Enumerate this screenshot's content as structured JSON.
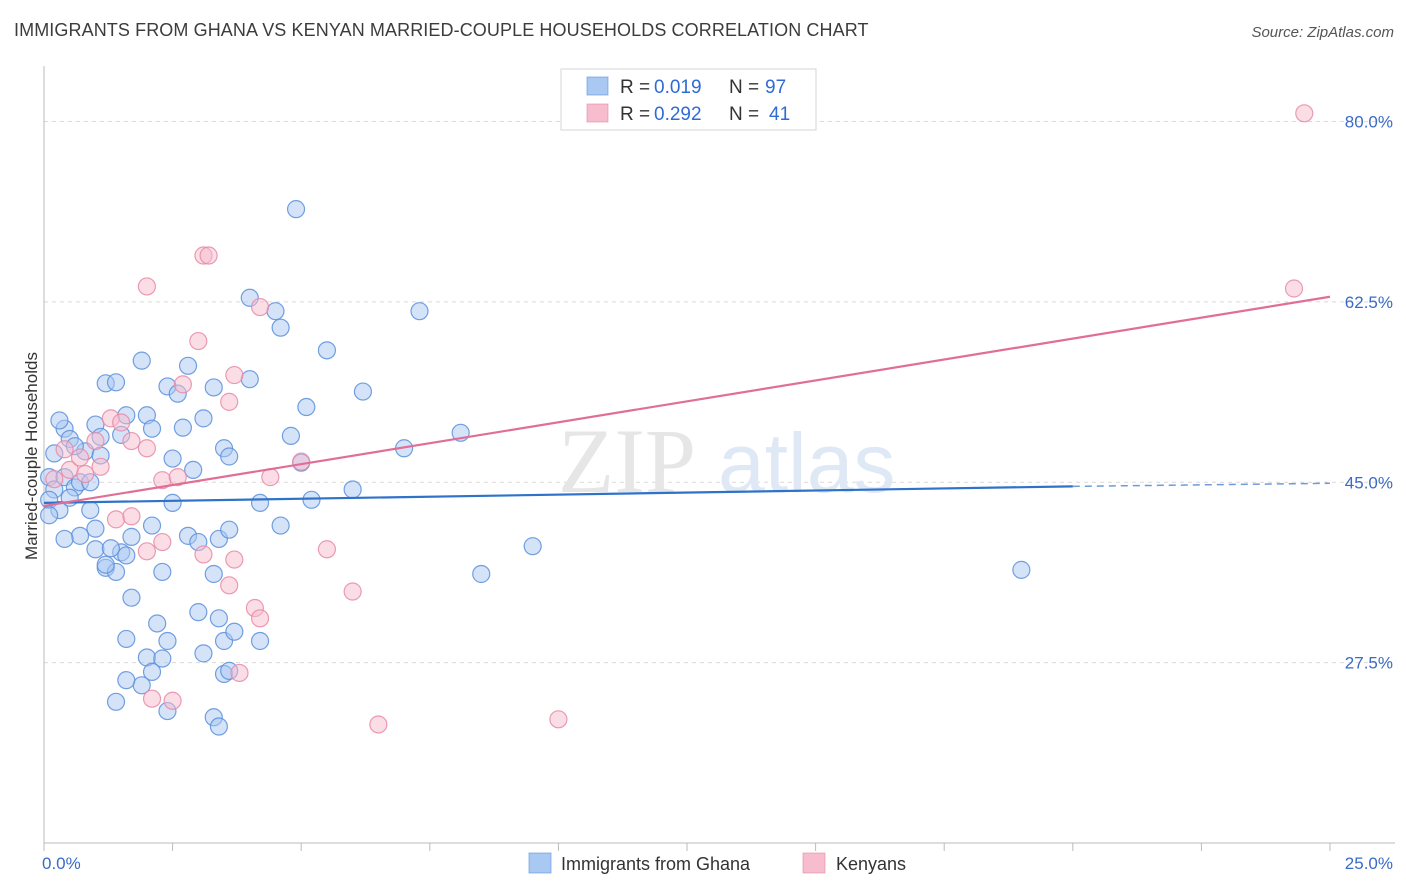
{
  "title": "IMMIGRANTS FROM GHANA VS KENYAN MARRIED-COUPLE HOUSEHOLDS CORRELATION CHART",
  "source": "Source: ZipAtlas.com",
  "watermark": {
    "zip": "ZIP",
    "atlas": "atlas"
  },
  "colors": {
    "blue_fill": "#a9c8f2",
    "blue_stroke": "#5a8fdc",
    "blue_line": "#2f72c9",
    "pink_fill": "#f7bccd",
    "pink_stroke": "#e889a7",
    "pink_line": "#e06e97",
    "grid": "#d9d9d9",
    "axis_label": "#3a6bc6"
  },
  "legend": {
    "rows": [
      {
        "r_label": "R =",
        "r_value": "0.019",
        "n_label": "N =",
        "n_value": "97"
      },
      {
        "r_label": "R =",
        "r_value": "0.292",
        "n_label": "N =",
        "n_value": "41"
      }
    ]
  },
  "bottom_legend": [
    "Immigrants from Ghana",
    "Kenyans"
  ],
  "chart_data": {
    "type": "scatter",
    "title": "IMMIGRANTS FROM GHANA VS KENYAN MARRIED-COUPLE HOUSEHOLDS CORRELATION CHART",
    "xlabel": "",
    "ylabel": "Married-couple Households",
    "xlim": [
      0,
      25
    ],
    "ylim": [
      10,
      85
    ],
    "x_tick_labels": [
      "0.0%",
      "25.0%"
    ],
    "y_ticks": [
      27.5,
      45.0,
      62.5,
      80.0
    ],
    "y_tick_labels": [
      "27.5%",
      "45.0%",
      "62.5%",
      "80.0%"
    ],
    "series": [
      {
        "name": "Immigrants from Ghana",
        "r": 0.019,
        "n": 97,
        "trend": {
          "x0": 0,
          "y0": 43.0,
          "x1": 20,
          "y1": 44.6,
          "dash_x1": 25,
          "dash_y1": 44.9
        },
        "points": [
          [
            0.1,
            45.5
          ],
          [
            0.2,
            44.3
          ],
          [
            0.1,
            43.3
          ],
          [
            0.3,
            42.3
          ],
          [
            0.1,
            41.8
          ],
          [
            0.2,
            47.8
          ],
          [
            0.4,
            50.2
          ],
          [
            0.5,
            49.2
          ],
          [
            0.4,
            45.5
          ],
          [
            0.6,
            44.5
          ],
          [
            0.7,
            45.0
          ],
          [
            0.5,
            43.5
          ],
          [
            0.8,
            48.0
          ],
          [
            0.9,
            45.0
          ],
          [
            1.0,
            50.6
          ],
          [
            1.1,
            47.6
          ],
          [
            0.9,
            42.3
          ],
          [
            1.0,
            40.5
          ],
          [
            0.7,
            39.8
          ],
          [
            0.4,
            39.5
          ],
          [
            1.2,
            54.6
          ],
          [
            1.1,
            49.4
          ],
          [
            1.4,
            54.7
          ],
          [
            1.5,
            49.6
          ],
          [
            1.6,
            51.5
          ],
          [
            1.9,
            56.8
          ],
          [
            2.0,
            51.5
          ],
          [
            2.1,
            50.2
          ],
          [
            2.4,
            54.3
          ],
          [
            2.6,
            53.6
          ],
          [
            2.7,
            50.3
          ],
          [
            2.8,
            56.3
          ],
          [
            2.5,
            47.3
          ],
          [
            2.5,
            43.0
          ],
          [
            2.9,
            46.2
          ],
          [
            3.1,
            51.2
          ],
          [
            3.3,
            54.2
          ],
          [
            3.5,
            48.3
          ],
          [
            3.6,
            47.5
          ],
          [
            4.0,
            62.9
          ],
          [
            4.0,
            55.0
          ],
          [
            4.2,
            43.0
          ],
          [
            4.5,
            61.6
          ],
          [
            4.6,
            60.0
          ],
          [
            4.8,
            49.5
          ],
          [
            5.0,
            46.9
          ],
          [
            5.2,
            43.3
          ],
          [
            5.1,
            52.3
          ],
          [
            5.5,
            57.8
          ],
          [
            4.9,
            71.5
          ],
          [
            6.0,
            44.3
          ],
          [
            6.2,
            53.8
          ],
          [
            7.3,
            61.6
          ],
          [
            7.0,
            48.3
          ],
          [
            8.1,
            49.8
          ],
          [
            1.0,
            38.5
          ],
          [
            1.2,
            36.7
          ],
          [
            1.4,
            36.3
          ],
          [
            1.5,
            38.2
          ],
          [
            1.3,
            38.6
          ],
          [
            1.6,
            37.9
          ],
          [
            1.7,
            39.7
          ],
          [
            1.2,
            37.0
          ],
          [
            2.3,
            36.3
          ],
          [
            2.8,
            39.8
          ],
          [
            3.0,
            39.2
          ],
          [
            3.4,
            39.5
          ],
          [
            3.3,
            36.1
          ],
          [
            2.1,
            40.8
          ],
          [
            1.7,
            33.8
          ],
          [
            2.2,
            31.3
          ],
          [
            1.6,
            29.8
          ],
          [
            2.0,
            28.0
          ],
          [
            2.3,
            27.9
          ],
          [
            2.1,
            26.6
          ],
          [
            1.9,
            25.3
          ],
          [
            2.4,
            29.6
          ],
          [
            3.0,
            32.4
          ],
          [
            3.5,
            29.6
          ],
          [
            3.4,
            31.8
          ],
          [
            3.7,
            30.5
          ],
          [
            4.2,
            29.6
          ],
          [
            3.5,
            26.4
          ],
          [
            3.6,
            26.7
          ],
          [
            3.1,
            28.4
          ],
          [
            1.4,
            23.7
          ],
          [
            1.6,
            25.8
          ],
          [
            3.3,
            22.2
          ],
          [
            3.4,
            21.3
          ],
          [
            2.4,
            22.8
          ],
          [
            9.5,
            38.8
          ],
          [
            8.5,
            36.1
          ],
          [
            3.6,
            40.4
          ],
          [
            4.6,
            40.8
          ],
          [
            19.0,
            36.5
          ],
          [
            0.3,
            51.0
          ],
          [
            0.6,
            48.5
          ]
        ]
      },
      {
        "name": "Kenyans",
        "r": 0.292,
        "n": 41,
        "trend": {
          "x0": 0,
          "y0": 42.7,
          "x1": 25,
          "y1": 63.0
        },
        "points": [
          [
            0.2,
            45.3
          ],
          [
            0.4,
            48.2
          ],
          [
            0.5,
            46.2
          ],
          [
            0.7,
            47.4
          ],
          [
            0.8,
            45.8
          ],
          [
            1.0,
            49.0
          ],
          [
            1.1,
            46.5
          ],
          [
            1.3,
            51.2
          ],
          [
            1.5,
            50.8
          ],
          [
            1.7,
            49.0
          ],
          [
            2.0,
            48.3
          ],
          [
            2.3,
            45.2
          ],
          [
            2.6,
            45.5
          ],
          [
            2.7,
            54.5
          ],
          [
            3.0,
            58.7
          ],
          [
            3.1,
            67.0
          ],
          [
            3.2,
            67.0
          ],
          [
            3.6,
            52.8
          ],
          [
            3.7,
            55.4
          ],
          [
            4.2,
            62.0
          ],
          [
            4.4,
            45.5
          ],
          [
            2.0,
            64.0
          ],
          [
            5.0,
            47.0
          ],
          [
            1.4,
            41.4
          ],
          [
            1.7,
            41.7
          ],
          [
            2.0,
            38.3
          ],
          [
            2.3,
            39.2
          ],
          [
            3.1,
            38.0
          ],
          [
            3.7,
            37.5
          ],
          [
            3.6,
            35.0
          ],
          [
            4.1,
            32.8
          ],
          [
            4.2,
            31.8
          ],
          [
            5.5,
            38.5
          ],
          [
            6.0,
            34.4
          ],
          [
            2.1,
            24.0
          ],
          [
            2.5,
            23.8
          ],
          [
            3.8,
            26.5
          ],
          [
            6.5,
            21.5
          ],
          [
            10.0,
            22.0
          ],
          [
            24.5,
            80.8
          ],
          [
            24.3,
            63.8
          ]
        ]
      }
    ]
  }
}
